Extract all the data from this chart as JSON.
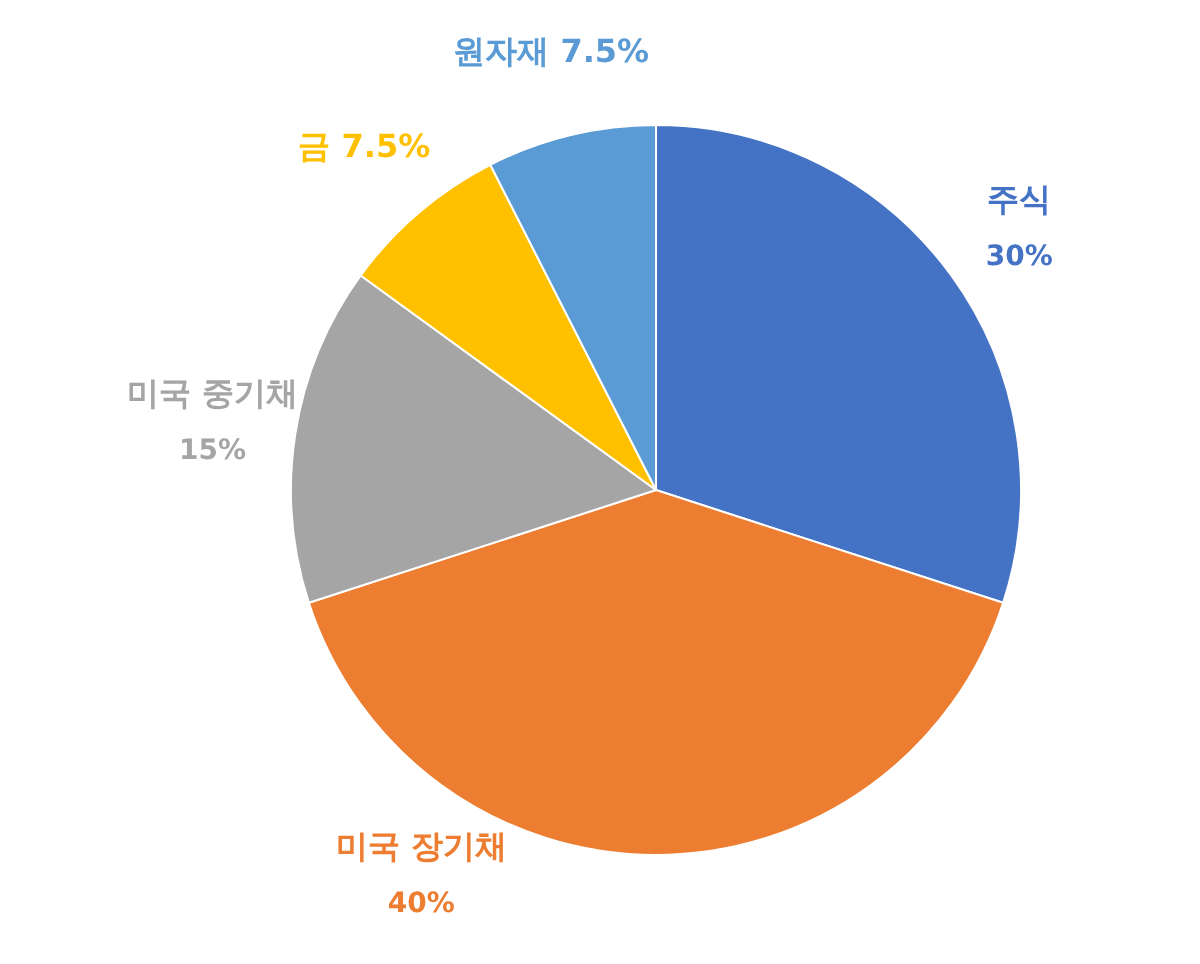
{
  "chart_data": {
    "type": "pie",
    "categories": [
      "주식",
      "미국 장기채",
      "미국 중기채",
      "금",
      "원자재"
    ],
    "values": [
      30,
      40,
      15,
      7.5,
      7.5
    ],
    "colors": [
      "#4472c4",
      "#ed7d31",
      "#a5a5a5",
      "#ffc000",
      "#5b9bd5"
    ],
    "value_labels": [
      "30%",
      "40%",
      "15%",
      "7.5%",
      "7.5%"
    ],
    "legend": false
  }
}
